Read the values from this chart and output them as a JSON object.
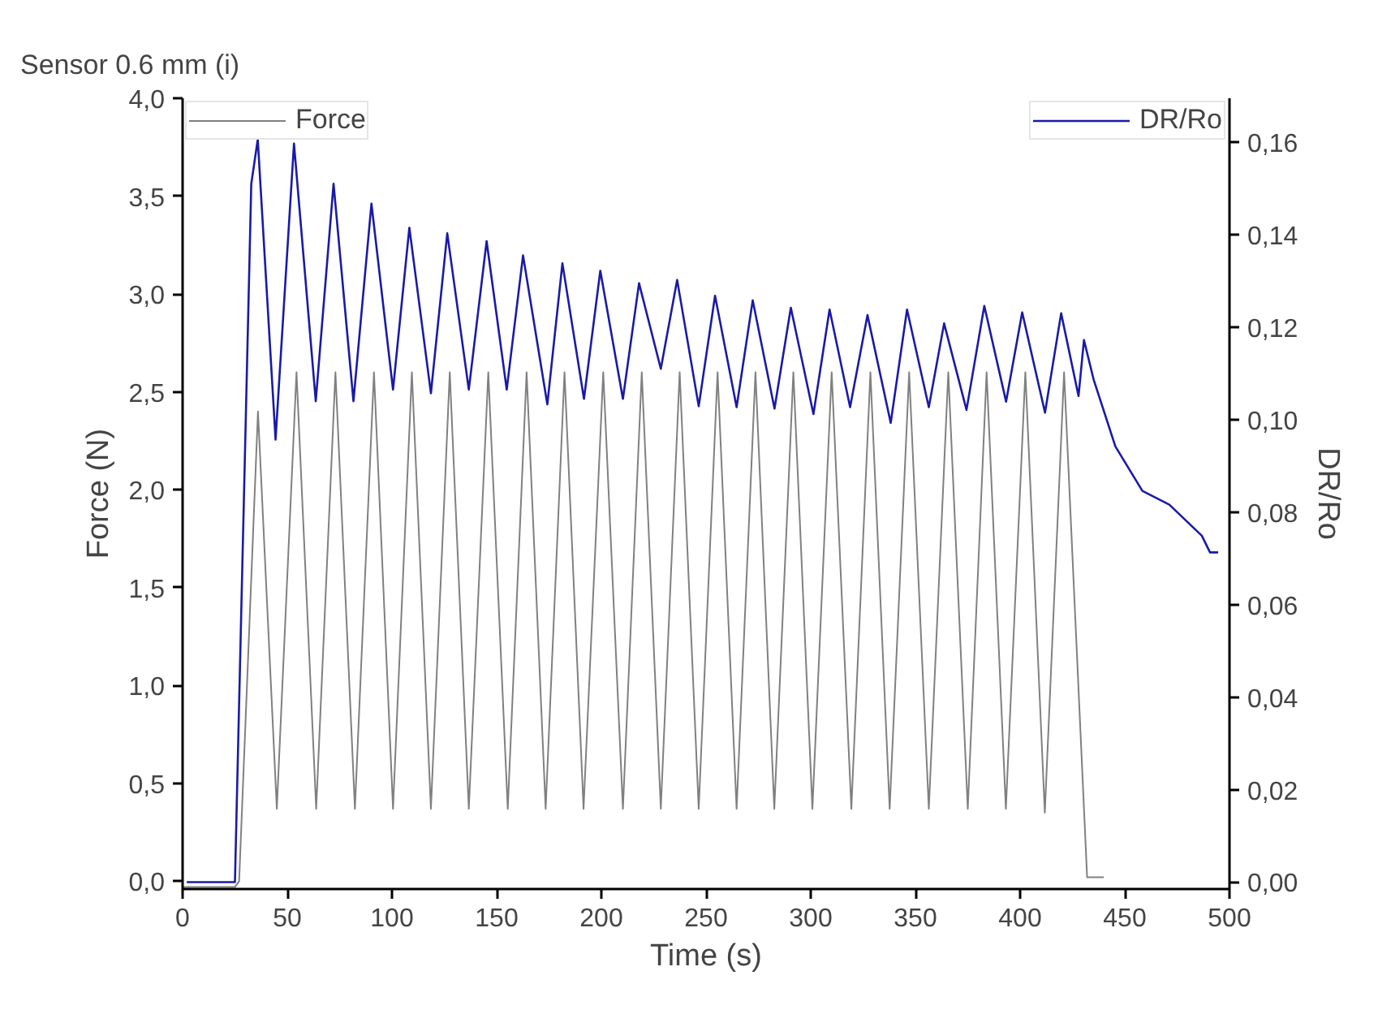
{
  "chart_data": {
    "type": "line",
    "title": "Sensor 0.6 mm (i)",
    "xlabel": "Time (s)",
    "ylabel": "Force (N)",
    "y2label": "DR/Ro",
    "xlim": [
      0,
      500
    ],
    "xticks": [
      0,
      50,
      100,
      150,
      200,
      250,
      300,
      350,
      400,
      450,
      500
    ],
    "ylim": [
      -0.04,
      4.0
    ],
    "yticks": [
      {
        "value": 0,
        "label": "0,0"
      },
      {
        "value": 0.5,
        "label": "0,5"
      },
      {
        "value": 1,
        "label": "1,0"
      },
      {
        "value": 1.5,
        "label": "1,5"
      },
      {
        "value": 2,
        "label": "2,0"
      },
      {
        "value": 2.5,
        "label": "2,5"
      },
      {
        "value": 3,
        "label": "3,0"
      },
      {
        "value": 3.5,
        "label": "3,5"
      },
      {
        "value": 4,
        "label": "4,0"
      }
    ],
    "y2lim": [
      -0.0015,
      0.1695
    ],
    "y2ticks": [
      {
        "value": 0,
        "label": "0,00"
      },
      {
        "value": 0.02,
        "label": "0,02"
      },
      {
        "value": 0.04,
        "label": "0,04"
      },
      {
        "value": 0.06,
        "label": "0,06"
      },
      {
        "value": 0.08,
        "label": "0,08"
      },
      {
        "value": 0.1,
        "label": "0,10"
      },
      {
        "value": 0.12,
        "label": "0,12"
      },
      {
        "value": 0.14,
        "label": "0,14"
      },
      {
        "value": 0.16,
        "label": "0,16"
      }
    ],
    "grid": false,
    "legend": "top",
    "marker": "none",
    "line_style": "solid",
    "series": [
      {
        "name": "Force",
        "color": "#808080",
        "x": [
          0,
          25,
          27,
          36,
          45,
          54.4,
          63.8,
          73,
          82.3,
          91.4,
          100.5,
          109.5,
          118.6,
          127.6,
          136.7,
          146,
          155.3,
          164.3,
          173.4,
          182.4,
          191.5,
          200.9,
          210.3,
          219.3,
          228.4,
          237.4,
          246.5,
          255.5,
          264.6,
          273.6,
          282.6,
          291.7,
          300.8,
          310,
          319.4,
          328.5,
          337.7,
          347,
          356.4,
          365.7,
          375,
          384,
          393.2,
          402.5,
          411.8,
          421,
          432,
          440
        ],
        "values": [
          -0.03,
          -0.03,
          0.0,
          2.4,
          0.37,
          2.6,
          0.37,
          2.6,
          0.37,
          2.6,
          0.37,
          2.6,
          0.37,
          2.6,
          0.37,
          2.6,
          0.37,
          2.6,
          0.37,
          2.6,
          0.37,
          2.6,
          0.37,
          2.6,
          0.37,
          2.6,
          0.37,
          2.6,
          0.37,
          2.6,
          0.37,
          2.6,
          0.37,
          2.6,
          0.37,
          2.6,
          0.37,
          2.6,
          0.37,
          2.6,
          0.37,
          2.6,
          0.37,
          2.6,
          0.35,
          2.6,
          0.02,
          0.02
        ]
      },
      {
        "name": "DR/Ro",
        "color": "#1a1aa8",
        "axis": "y2",
        "x": [
          2,
          25,
          32.8,
          35.9,
          44.4,
          53.2,
          63.6,
          72.1,
          81.6,
          90.2,
          100.5,
          108.3,
          118.6,
          126.4,
          136.7,
          145.2,
          154.8,
          162.6,
          174.2,
          181.4,
          191.7,
          199.5,
          210.3,
          218,
          228.4,
          236.2,
          246.5,
          254.3,
          264.6,
          272.3,
          282.7,
          290.5,
          301.3,
          309,
          318.8,
          327.1,
          338.2,
          346,
          356.4,
          363.7,
          374.4,
          382.9,
          393.3,
          401,
          411.9,
          419.6,
          427.9,
          430.5,
          435.1,
          445.5,
          458.4,
          471.3,
          486.8,
          490.7,
          494.6
        ],
        "values": [
          0,
          0,
          0.151,
          0.1606,
          0.0957,
          0.1597,
          0.104,
          0.151,
          0.104,
          0.1467,
          0.1065,
          0.1415,
          0.1057,
          0.1403,
          0.1065,
          0.1386,
          0.1065,
          0.1355,
          0.1033,
          0.1338,
          0.1045,
          0.1322,
          0.1045,
          0.1295,
          0.111,
          0.1302,
          0.1029,
          0.1268,
          0.1027,
          0.1258,
          0.1024,
          0.1242,
          0.1012,
          0.1238,
          0.1027,
          0.1226,
          0.0993,
          0.1238,
          0.1027,
          0.1208,
          0.1021,
          0.1246,
          0.1039,
          0.1232,
          0.1015,
          0.123,
          0.1051,
          0.1172,
          0.1087,
          0.0942,
          0.0846,
          0.0816,
          0.0749,
          0.0713,
          0.0713
        ]
      }
    ]
  }
}
